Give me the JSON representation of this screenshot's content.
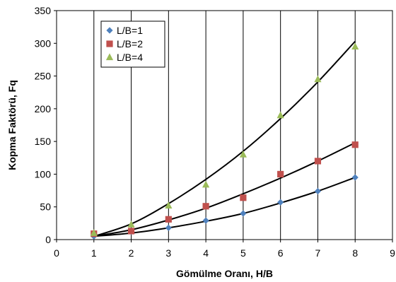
{
  "chart_data": {
    "type": "scatter",
    "title": "",
    "xlabel": "Gömülme Oranı, H/B",
    "ylabel": "Kopma Faktörü, Fq",
    "xlim": [
      0,
      9
    ],
    "ylim": [
      0,
      350
    ],
    "xticks": [
      "0",
      "1",
      "2",
      "3",
      "4",
      "5",
      "6",
      "7",
      "8",
      "9"
    ],
    "yticks": [
      "0",
      "50",
      "100",
      "150",
      "200",
      "250",
      "300",
      "350"
    ],
    "grid": "vertical",
    "legend_position": "top-left",
    "series": [
      {
        "name": "L/B=1",
        "marker": "diamond",
        "color": "#4f81bd",
        "points": [
          [
            1,
            5
          ],
          [
            2,
            12
          ],
          [
            3,
            18
          ],
          [
            4,
            29
          ],
          [
            5,
            40
          ],
          [
            6,
            57
          ],
          [
            7,
            74
          ],
          [
            8,
            95
          ]
        ],
        "trendline": [
          [
            1,
            5
          ],
          [
            2,
            10
          ],
          [
            3,
            18
          ],
          [
            4,
            28
          ],
          [
            5,
            40
          ],
          [
            6,
            56
          ],
          [
            7,
            74
          ],
          [
            8,
            95
          ]
        ]
      },
      {
        "name": "L/B=2",
        "marker": "square",
        "color": "#c0504d",
        "points": [
          [
            1,
            9
          ],
          [
            2,
            13
          ],
          [
            3,
            31
          ],
          [
            4,
            51
          ],
          [
            5,
            64
          ],
          [
            6,
            100
          ],
          [
            7,
            120
          ],
          [
            8,
            145
          ]
        ],
        "trendline": [
          [
            1,
            5
          ],
          [
            2,
            15
          ],
          [
            3,
            30
          ],
          [
            4,
            48
          ],
          [
            5,
            70
          ],
          [
            6,
            94
          ],
          [
            7,
            120
          ],
          [
            8,
            148
          ]
        ]
      },
      {
        "name": "L/B=4",
        "marker": "triangle",
        "color": "#9bbb59",
        "points": [
          [
            1,
            10
          ],
          [
            2,
            23
          ],
          [
            3,
            52
          ],
          [
            4,
            84
          ],
          [
            5,
            130
          ],
          [
            6,
            190
          ],
          [
            7,
            245
          ],
          [
            8,
            295
          ]
        ],
        "trendline": [
          [
            1,
            5
          ],
          [
            2,
            24
          ],
          [
            3,
            55
          ],
          [
            4,
            92
          ],
          [
            5,
            135
          ],
          [
            6,
            185
          ],
          [
            7,
            241
          ],
          [
            8,
            303
          ]
        ]
      }
    ]
  }
}
